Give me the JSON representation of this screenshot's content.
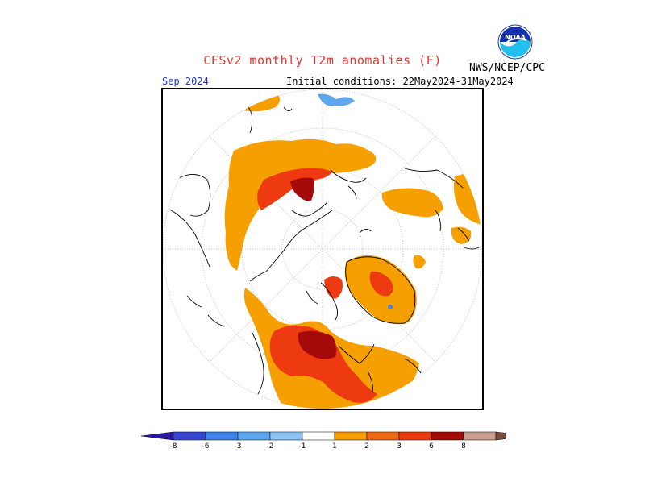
{
  "header": {
    "title": "CFSv2 monthly T2m anomalies (F)",
    "agency": "NWS/NCEP/CPC",
    "logo_text": "NOAA",
    "month": "Sep 2024",
    "initial_conditions": "Initial conditions: 22May2024-31May2024"
  },
  "map": {
    "projection": "north-polar-stereographic",
    "variable": "2m temperature anomaly",
    "units": "F"
  },
  "colorbar": {
    "ticks": [
      "-8",
      "-6",
      "-3",
      "-2",
      "-1",
      "1",
      "2",
      "3",
      "6",
      "8"
    ],
    "bins": [
      {
        "color": "#2a17a8"
      },
      {
        "color": "#3a46d4"
      },
      {
        "color": "#3f84e8"
      },
      {
        "color": "#5ea6ee"
      },
      {
        "color": "#8ec4f5"
      },
      {
        "color": "#ffffff"
      },
      {
        "color": "#f5a000"
      },
      {
        "color": "#f06a15"
      },
      {
        "color": "#ee3a10"
      },
      {
        "color": "#a50a0a"
      },
      {
        "color": "#c8a090"
      },
      {
        "color": "#7a4a3a"
      }
    ]
  }
}
